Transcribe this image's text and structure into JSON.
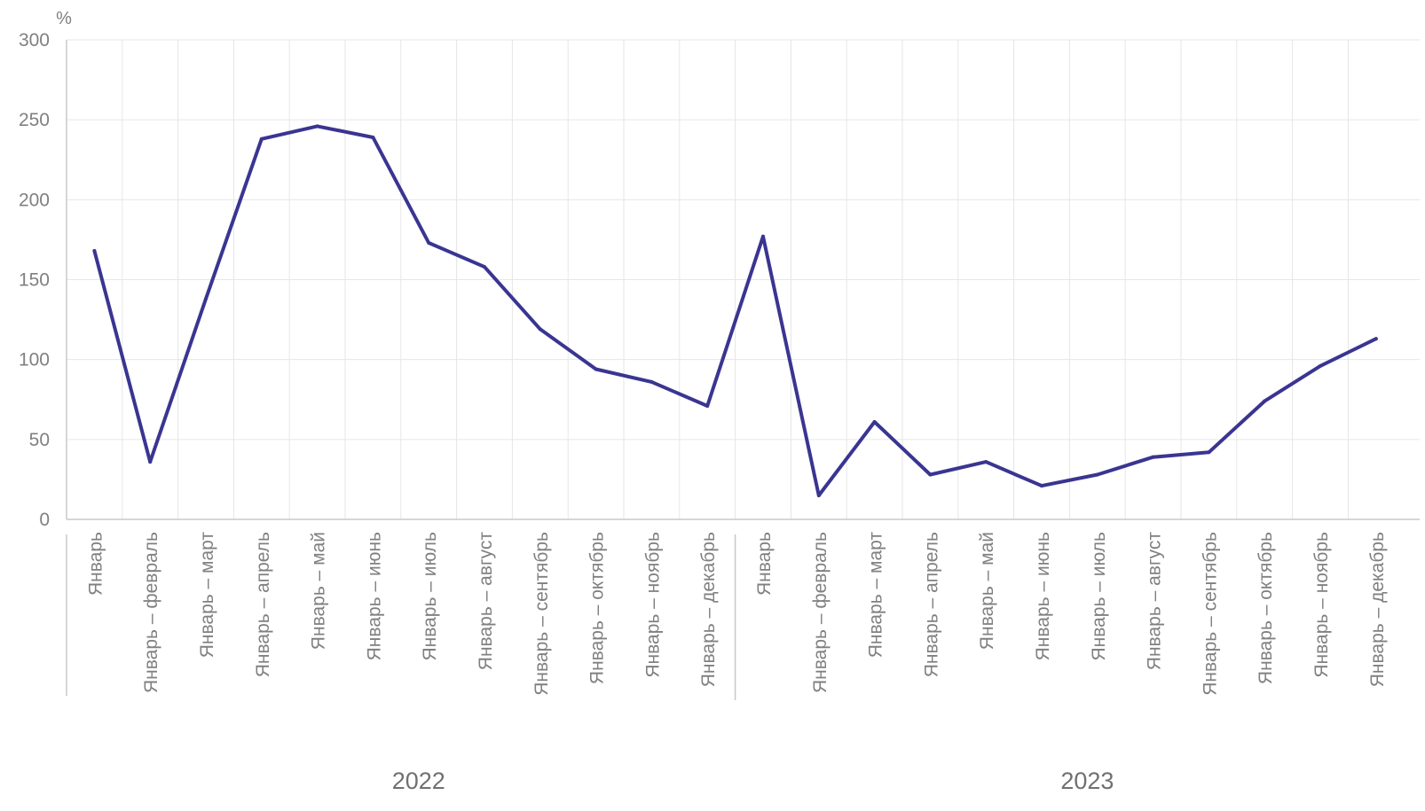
{
  "chart_data": {
    "type": "line",
    "y_unit": "%",
    "ylim": [
      0,
      300
    ],
    "yticks": [
      "0",
      "50",
      "100",
      "150",
      "200",
      "250",
      "300"
    ],
    "grid": true,
    "line_color": "#3a3591",
    "groups": [
      {
        "year": "2022",
        "categories": [
          "Январь",
          "Январь – февраль",
          "Январь – март",
          "Январь – апрель",
          "Январь – май",
          "Январь – июнь",
          "Январь – июль",
          "Январь – август",
          "Январь – сентябрь",
          "Январь – октябрь",
          "Январь – ноябрь",
          "Январь – декабрь"
        ]
      },
      {
        "year": "2023",
        "categories": [
          "Январь",
          "Январь – февраль",
          "Январь – март",
          "Январь – апрель",
          "Январь – май",
          "Январь – июнь",
          "Январь – июль",
          "Январь – август",
          "Январь – сентябрь",
          "Январь – октябрь",
          "Январь – ноябрь",
          "Январь – декабрь"
        ]
      }
    ],
    "series": [
      {
        "values": [
          168,
          36,
          138,
          238,
          246,
          239,
          173,
          158,
          119,
          94,
          86,
          71,
          177,
          15,
          61,
          28,
          36,
          21,
          28,
          39,
          42,
          74,
          96,
          113
        ]
      }
    ]
  }
}
